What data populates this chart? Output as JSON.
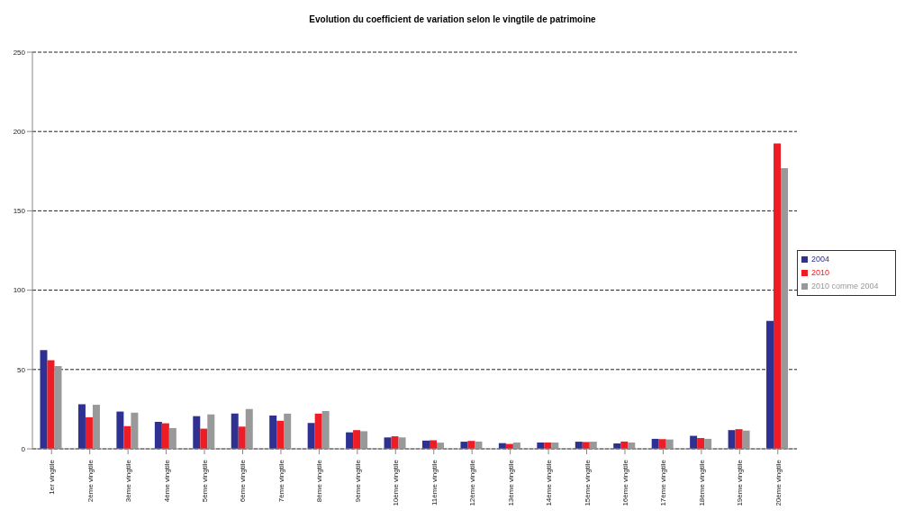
{
  "chart_data": {
    "type": "bar",
    "title": "Evolution du coefficient de variation selon le vingtile de patrimoine",
    "categories": [
      "1er vingtile",
      "2ème vingtile",
      "3ème vingtile",
      "4ème vingtile",
      "5ème vingtile",
      "6ème vingtile",
      "7ème vingtile",
      "8ème vingtile",
      "9ème vingtile",
      "10ème vingtile",
      "11ème vingtile",
      "12ème vingtile",
      "13ème vingtile",
      "14ème vingtile",
      "15ème vingtile",
      "16ème vingtile",
      "17ème vingtile",
      "18ème vingtile",
      "19ème vingtile",
      "20ème vingtile"
    ],
    "series": [
      {
        "name": "2004",
        "color": "#2e3192",
        "values": [
          62.2,
          28.1,
          23.5,
          17.0,
          20.6,
          22.2,
          21.0,
          16.3,
          10.4,
          7.2,
          5.2,
          4.5,
          3.6,
          4.0,
          4.5,
          3.4,
          6.3,
          8.2,
          11.8,
          80.6
        ]
      },
      {
        "name": "2010",
        "color": "#ee1c24",
        "values": [
          55.9,
          19.9,
          14.3,
          16.1,
          12.7,
          14.0,
          17.7,
          22.2,
          11.8,
          7.9,
          5.4,
          5.0,
          3.1,
          4.0,
          4.3,
          4.6,
          6.1,
          6.8,
          12.4,
          192.5
        ]
      },
      {
        "name": "2010 comme 2004",
        "color": "#999999",
        "values": [
          52.2,
          27.8,
          22.8,
          13.1,
          21.7,
          25.1,
          22.2,
          23.8,
          11.1,
          7.2,
          3.9,
          4.6,
          4.0,
          4.0,
          4.5,
          4.0,
          5.9,
          6.3,
          11.5,
          176.9
        ]
      }
    ],
    "ylim": [
      0,
      250
    ],
    "yticks": [
      0,
      50,
      100,
      150,
      200,
      250
    ],
    "grid": "y",
    "legend": "right"
  }
}
